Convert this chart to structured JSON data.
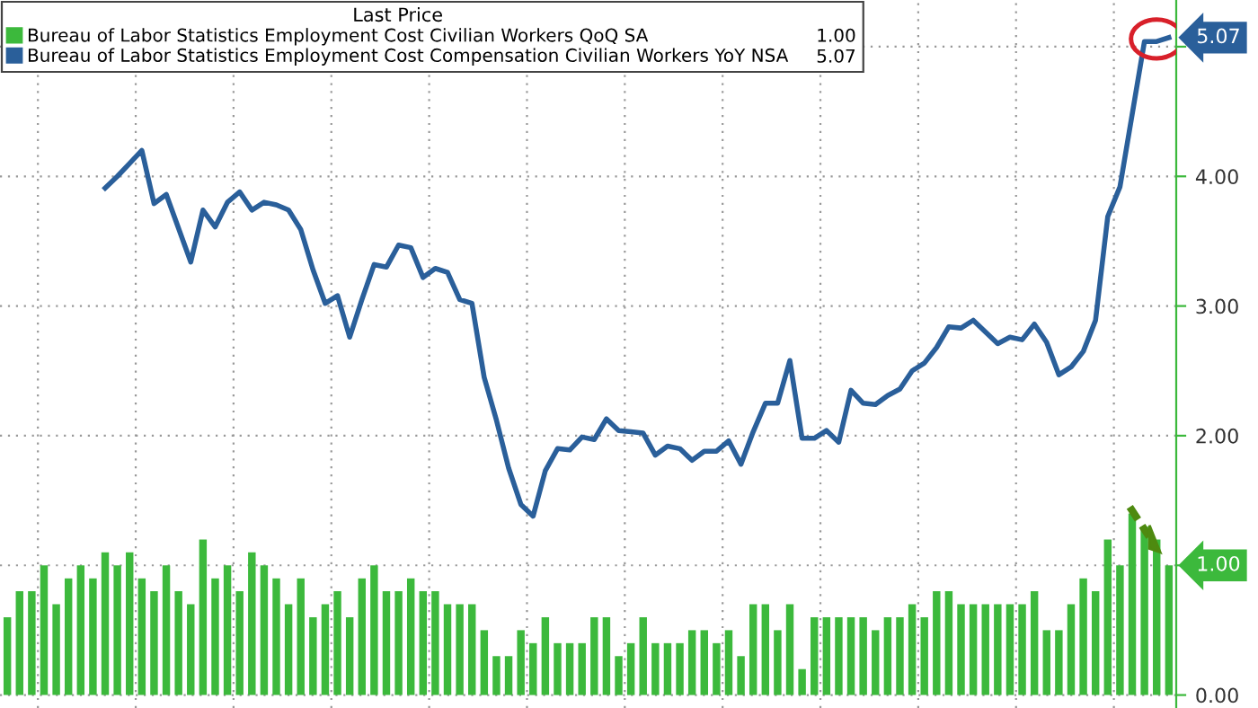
{
  "chart_data": {
    "type": "bar",
    "categories": [
      null,
      null,
      null,
      null,
      null,
      null,
      null,
      null,
      null,
      null,
      null,
      null,
      null,
      null,
      null,
      null,
      null,
      null,
      null,
      null,
      null,
      null,
      null,
      null,
      null,
      null,
      null,
      null,
      null,
      null,
      null,
      null,
      null,
      null,
      null,
      null,
      null,
      null,
      null,
      null,
      null,
      null,
      null,
      null,
      null,
      null,
      null,
      null,
      null,
      null,
      null,
      null,
      null,
      null,
      null,
      null,
      null,
      null,
      null,
      null,
      null,
      null,
      null,
      null,
      null,
      null,
      null,
      null,
      null,
      null,
      null,
      null,
      null,
      null,
      null,
      null,
      null,
      null,
      null,
      null,
      null,
      null,
      null,
      null,
      null,
      null,
      null,
      null,
      null,
      null,
      null,
      null,
      null,
      null,
      null,
      null
    ],
    "series": [
      {
        "name": "Bureau of Labor Statistics Employment Cost Civilian Workers QoQ SA",
        "color": "#3cb93c",
        "values": [
          0.6,
          0.8,
          0.8,
          1.0,
          0.7,
          0.9,
          1.0,
          0.9,
          1.1,
          1.0,
          1.1,
          0.9,
          0.8,
          1.0,
          0.8,
          0.7,
          1.2,
          0.9,
          1.0,
          0.8,
          1.1,
          1.0,
          0.9,
          0.7,
          0.9,
          0.6,
          0.7,
          0.8,
          0.6,
          0.9,
          1.0,
          0.8,
          0.8,
          0.9,
          0.8,
          0.8,
          0.7,
          0.7,
          0.7,
          0.5,
          0.3,
          0.3,
          0.5,
          0.4,
          0.6,
          0.4,
          0.4,
          0.4,
          0.6,
          0.6,
          0.3,
          0.4,
          0.6,
          0.4,
          0.4,
          0.4,
          0.5,
          0.5,
          0.4,
          0.5,
          0.3,
          0.7,
          0.7,
          0.5,
          0.7,
          0.2,
          0.6,
          0.6,
          0.6,
          0.6,
          0.6,
          0.5,
          0.6,
          0.6,
          0.7,
          0.6,
          0.8,
          0.8,
          0.7,
          0.7,
          0.7,
          0.7,
          0.7,
          0.7,
          0.8,
          0.5,
          0.5,
          0.7,
          0.9,
          0.8,
          1.2,
          1.0,
          1.4,
          1.3,
          1.2,
          1.0
        ]
      },
      {
        "name": "Bureau of Labor Statistics Employment Cost Compensation Civilian Workers YoY NSA",
        "type": "line",
        "color": "#2a5f9a",
        "values": [
          null,
          null,
          null,
          null,
          null,
          null,
          null,
          null,
          3.91,
          4.0,
          4.1,
          4.2,
          3.79,
          3.86,
          3.6,
          3.34,
          3.74,
          3.61,
          3.8,
          3.88,
          3.74,
          3.8,
          3.78,
          3.74,
          3.59,
          3.28,
          3.02,
          3.08,
          2.76,
          3.05,
          3.32,
          3.3,
          3.47,
          3.45,
          3.22,
          3.29,
          3.26,
          3.05,
          3.02,
          2.45,
          2.12,
          1.75,
          1.47,
          1.38,
          1.73,
          1.9,
          1.89,
          1.99,
          1.97,
          2.13,
          2.04,
          2.03,
          2.02,
          1.85,
          1.92,
          1.9,
          1.81,
          1.88,
          1.88,
          1.96,
          1.78,
          2.03,
          2.25,
          2.25,
          2.58,
          1.98,
          1.98,
          2.04,
          1.95,
          2.35,
          2.25,
          2.24,
          2.31,
          2.36,
          2.5,
          2.56,
          2.68,
          2.84,
          2.83,
          2.89,
          2.8,
          2.71,
          2.76,
          2.74,
          2.86,
          2.72,
          2.47,
          2.53,
          2.65,
          2.89,
          3.69,
          3.92,
          4.48,
          5.04,
          5.04,
          5.07
        ]
      }
    ],
    "legend_title": "Last Price",
    "annotations": [
      "1.00",
      "5.07",
      "1.00",
      "5.07"
    ],
    "ylim": [
      -0.1,
      5.36
    ],
    "yticks": [
      {
        "value": 0,
        "label": "0.00"
      },
      {
        "value": 1,
        "label": "1.00"
      },
      {
        "value": 2,
        "label": "2.00"
      },
      {
        "value": 3,
        "label": "3.00"
      },
      {
        "value": 4,
        "label": "4.00"
      },
      {
        "value": 5,
        "label": null
      }
    ],
    "grid": true,
    "legend": "top left",
    "line_style": "solid",
    "marker": "none"
  }
}
